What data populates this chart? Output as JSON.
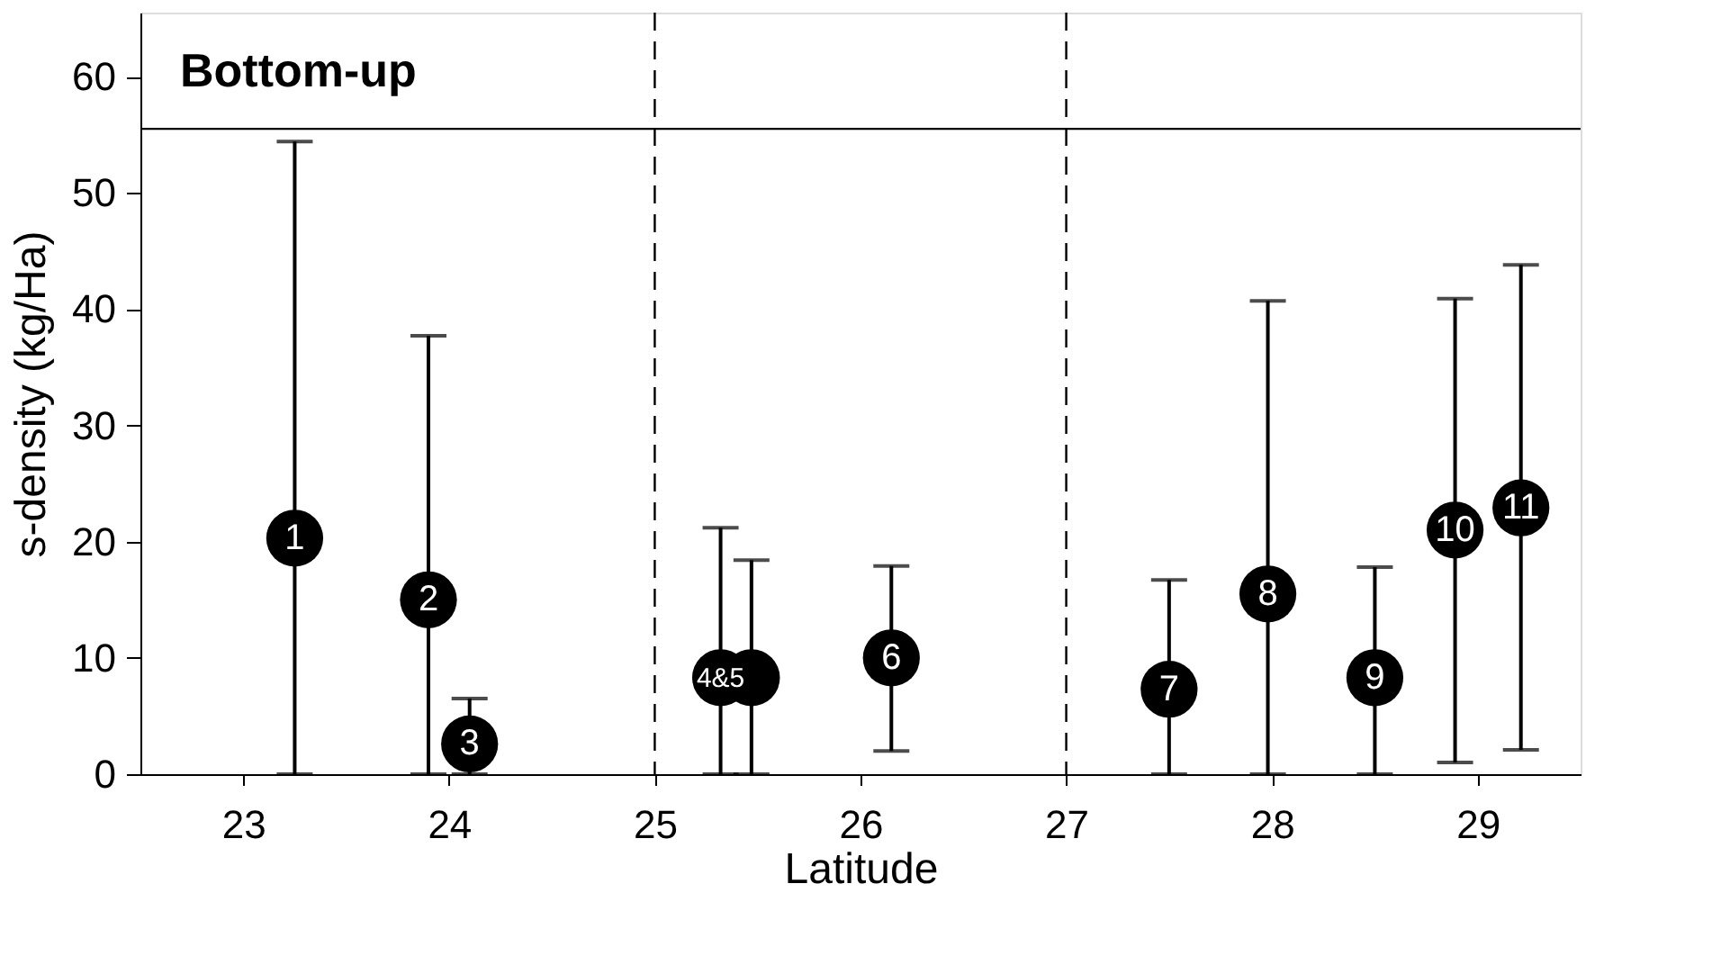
{
  "chart_data": {
    "type": "scatter",
    "title": "Bottom-up",
    "xlabel": "Latitude",
    "ylabel": "s-density (kg/Ha)",
    "x": [
      23.25,
      23.9,
      24.1,
      25.32,
      25.47,
      26.15,
      27.5,
      27.98,
      28.5,
      28.89,
      29.21
    ],
    "series": [
      {
        "color": "#000000",
        "values": [
          20.3,
          15.0,
          2.6,
          8.3,
          8.3,
          10.0,
          7.3,
          15.5,
          8.3,
          21.0,
          22.9
        ],
        "errors": [
          [
            0,
            54.4
          ],
          [
            0,
            37.7
          ],
          [
            0,
            6.5
          ],
          [
            0,
            21.2
          ],
          [
            0,
            18.4
          ],
          [
            2.0,
            17.9
          ],
          [
            0,
            16.7
          ],
          [
            0,
            40.7
          ],
          [
            0,
            17.8
          ],
          [
            1.0,
            40.9
          ],
          [
            2.1,
            43.8
          ]
        ]
      }
    ],
    "marker": "circle",
    "annotations": [
      {
        "text": "1",
        "x": 23.25,
        "y": 20.3
      },
      {
        "text": "2",
        "x": 23.9,
        "y": 15.0
      },
      {
        "text": "3",
        "x": 24.1,
        "y": 2.6
      },
      {
        "text": "4&5",
        "x": 25.32,
        "y": 8.3
      },
      {
        "text": "6",
        "x": 26.15,
        "y": 10.0
      },
      {
        "text": "7",
        "x": 27.5,
        "y": 7.3
      },
      {
        "text": "8",
        "x": 27.98,
        "y": 15.5
      },
      {
        "text": "9",
        "x": 28.5,
        "y": 8.3
      },
      {
        "text": "10",
        "x": 28.89,
        "y": 21.0
      },
      {
        "text": "11",
        "x": 29.21,
        "y": 22.9
      }
    ],
    "ref_lines": [
      {
        "axis": "x",
        "value": 25,
        "line_style": "dashed",
        "color": "#000000"
      },
      {
        "axis": "x",
        "value": 27,
        "line_style": "dashed",
        "color": "#000000"
      },
      {
        "axis": "y",
        "value": 55.5,
        "line_style": "solid",
        "color": "#000000"
      }
    ],
    "xlim": [
      22.5,
      29.5
    ],
    "xticks": [
      23,
      24,
      25,
      26,
      27,
      28,
      29
    ],
    "ylim": [
      0,
      65.5
    ],
    "yticks": [
      0,
      10,
      20,
      30,
      40,
      50,
      60
    ],
    "grid": false
  }
}
